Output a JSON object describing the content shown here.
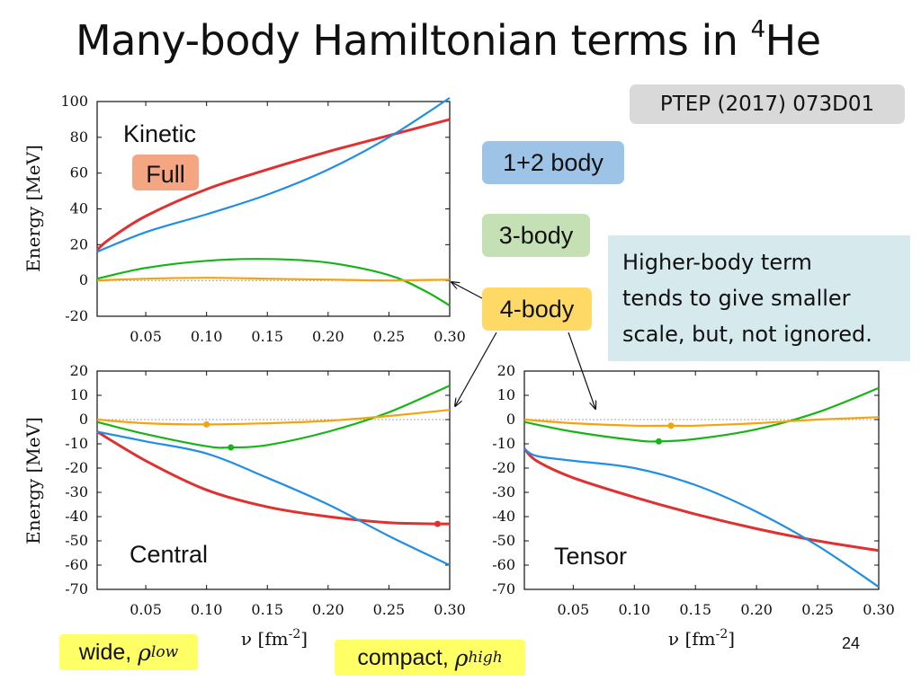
{
  "slide": {
    "title_main": "Many-body Hamiltonian terms in ",
    "title_sup": "4",
    "title_end": "He",
    "reference": "PTEP (2017) 073D01",
    "legend_12": "1+2 body",
    "legend_3": "3-body",
    "legend_4": "4-body",
    "note_lines": [
      "Higher-body term",
      "tends to give smaller",
      "scale, but, not ignored."
    ],
    "wide_label": "wide, ",
    "wide_symbol": "ρ",
    "wide_sub": "low",
    "compact_label": "compact, ",
    "compact_symbol": "ρ",
    "compact_sub": "high",
    "page_number": "24"
  },
  "colors": {
    "c12": "#1f8fe6",
    "c3": "#16b416",
    "c4": "#f5a30a",
    "full": "#e03030"
  },
  "chart_data": [
    {
      "type": "line",
      "panel": "kinetic",
      "label": "Kinetic",
      "badge": "Full",
      "xlabel": "",
      "ylabel": "Energy [MeV]",
      "xlim": [
        0.01,
        0.3
      ],
      "ylim": [
        -20,
        100
      ],
      "xticks": [
        0.05,
        0.1,
        0.15,
        0.2,
        0.25,
        0.3
      ],
      "xtick_labels": [
        "0.05",
        "0.10",
        "0.15",
        "0.20",
        "0.25",
        "0.30"
      ],
      "yticks": [
        -20,
        0,
        20,
        40,
        60,
        80,
        100
      ],
      "ytick_labels": [
        "-20",
        "0",
        "20",
        "40",
        "60",
        "80",
        "100"
      ],
      "series": [
        {
          "name": "Full",
          "color_key": "full",
          "x": [
            0.01,
            0.02,
            0.05,
            0.1,
            0.15,
            0.2,
            0.25,
            0.3
          ],
          "y": [
            17,
            23,
            36,
            51,
            62,
            72,
            81,
            90
          ]
        },
        {
          "name": "1+2 body",
          "color_key": "c12",
          "x": [
            0.01,
            0.05,
            0.1,
            0.15,
            0.2,
            0.25,
            0.3
          ],
          "y": [
            16,
            27,
            37,
            48,
            62,
            80,
            102
          ]
        },
        {
          "name": "3-body",
          "color_key": "c3",
          "x": [
            0.01,
            0.05,
            0.1,
            0.15,
            0.2,
            0.25,
            0.28,
            0.3
          ],
          "y": [
            1,
            7,
            11,
            12,
            10,
            3,
            -6,
            -14
          ]
        },
        {
          "name": "4-body",
          "color_key": "c4",
          "x": [
            0.01,
            0.05,
            0.1,
            0.15,
            0.2,
            0.25,
            0.3
          ],
          "y": [
            0,
            1,
            1.5,
            1,
            0.5,
            0,
            0.5
          ]
        }
      ]
    },
    {
      "type": "line",
      "panel": "central",
      "label": "Central",
      "xlabel": "ν [fm⁻²]",
      "ylabel": "Energy [MeV]",
      "xlim": [
        0.01,
        0.3
      ],
      "ylim": [
        -70,
        20
      ],
      "xticks": [
        0.05,
        0.1,
        0.15,
        0.2,
        0.25,
        0.3
      ],
      "xtick_labels": [
        "0.05",
        "0.10",
        "0.15",
        "0.20",
        "0.25",
        "0.30"
      ],
      "yticks": [
        -70,
        -60,
        -50,
        -40,
        -30,
        -20,
        -10,
        0,
        10,
        20
      ],
      "ytick_labels": [
        "-70",
        "-60",
        "-50",
        "-40",
        "-30",
        "-20",
        "-10",
        "0",
        "10",
        "20"
      ],
      "series": [
        {
          "name": "Full",
          "color_key": "full",
          "x": [
            0.01,
            0.05,
            0.1,
            0.15,
            0.2,
            0.25,
            0.29,
            0.3
          ],
          "y": [
            -5,
            -17,
            -29,
            -36,
            -40,
            -42.5,
            -43,
            -43
          ],
          "marker": [
            0.29,
            -43
          ]
        },
        {
          "name": "1+2 body",
          "color_key": "c12",
          "x": [
            0.01,
            0.05,
            0.1,
            0.15,
            0.2,
            0.25,
            0.3
          ],
          "y": [
            -5,
            -9,
            -14,
            -24,
            -35,
            -48,
            -60
          ]
        },
        {
          "name": "3-body",
          "color_key": "c3",
          "x": [
            0.01,
            0.05,
            0.1,
            0.12,
            0.15,
            0.2,
            0.25,
            0.3
          ],
          "y": [
            -1,
            -6,
            -11,
            -11.5,
            -10.5,
            -5,
            3,
            14
          ],
          "marker": [
            0.12,
            -11.5
          ]
        },
        {
          "name": "4-body",
          "color_key": "c4",
          "x": [
            0.01,
            0.05,
            0.1,
            0.15,
            0.2,
            0.25,
            0.3
          ],
          "y": [
            0,
            -1.5,
            -2,
            -1.5,
            -0.5,
            1.5,
            4
          ],
          "marker": [
            0.1,
            -2
          ]
        }
      ]
    },
    {
      "type": "line",
      "panel": "tensor",
      "label": "Tensor",
      "xlabel": "ν [fm⁻²]",
      "ylabel": "",
      "xlim": [
        0.01,
        0.3
      ],
      "ylim": [
        -70,
        20
      ],
      "xticks": [
        0.05,
        0.1,
        0.15,
        0.2,
        0.25,
        0.3
      ],
      "xtick_labels": [
        "0.05",
        "0.10",
        "0.15",
        "0.20",
        "0.25",
        "0.30"
      ],
      "yticks": [
        -70,
        -60,
        -50,
        -40,
        -30,
        -20,
        -10,
        0,
        10,
        20
      ],
      "ytick_labels": [
        "-70",
        "-60",
        "-50",
        "-40",
        "-30",
        "-20",
        "-10",
        "0",
        "10",
        "20"
      ],
      "series": [
        {
          "name": "Full",
          "color_key": "full",
          "x": [
            0.01,
            0.02,
            0.05,
            0.1,
            0.15,
            0.2,
            0.25,
            0.3
          ],
          "y": [
            -12,
            -17,
            -24,
            -32,
            -39,
            -45,
            -50,
            -54
          ]
        },
        {
          "name": "1+2 body",
          "color_key": "c12",
          "x": [
            0.01,
            0.02,
            0.05,
            0.1,
            0.15,
            0.2,
            0.25,
            0.3
          ],
          "y": [
            -12,
            -15,
            -17,
            -20,
            -27,
            -38,
            -52,
            -69
          ]
        },
        {
          "name": "3-body",
          "color_key": "c3",
          "x": [
            0.01,
            0.05,
            0.1,
            0.12,
            0.15,
            0.2,
            0.25,
            0.3
          ],
          "y": [
            -1,
            -5,
            -8.5,
            -9,
            -8,
            -4,
            3,
            13
          ],
          "marker": [
            0.12,
            -9
          ]
        },
        {
          "name": "4-body",
          "color_key": "c4",
          "x": [
            0.01,
            0.05,
            0.1,
            0.13,
            0.15,
            0.2,
            0.25,
            0.3
          ],
          "y": [
            0,
            -1.5,
            -2.5,
            -2.5,
            -2.5,
            -1.5,
            0,
            1
          ],
          "marker": [
            0.13,
            -2.5
          ]
        }
      ]
    }
  ]
}
